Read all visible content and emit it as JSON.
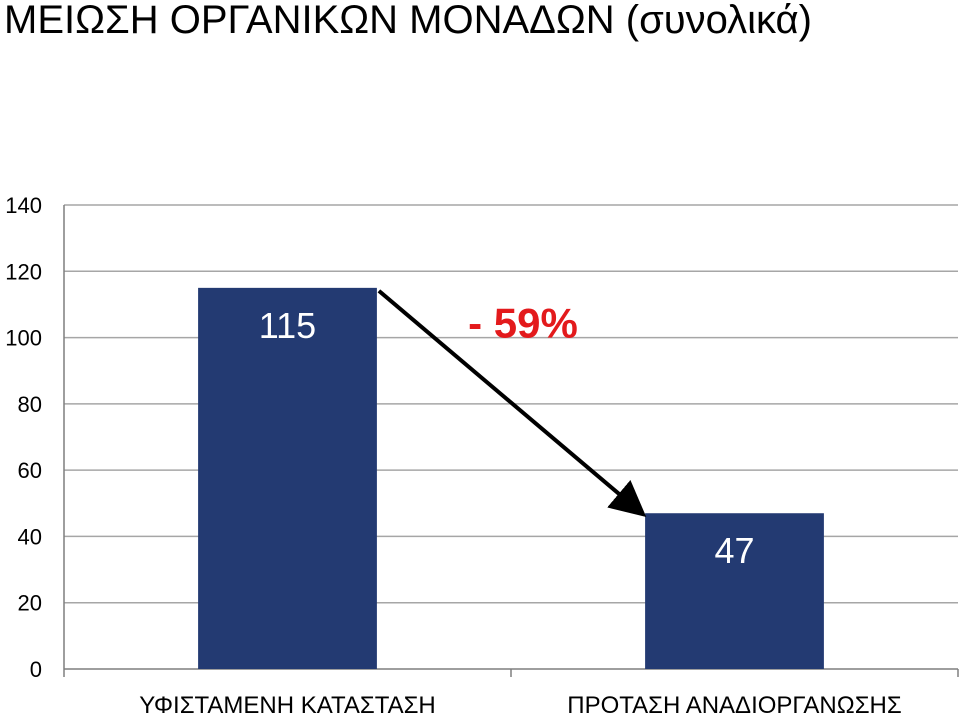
{
  "chart_data": {
    "type": "bar",
    "title": "ΜΕΙΩΣΗ ΟΡΓΑΝΙΚΩΝ ΜΟΝΑΔΩΝ (συνολικά)",
    "categories": [
      "ΥΦΙΣΤΑΜΕΝΗ ΚΑΤΑΣΤΑΣΗ",
      "ΠΡΟΤΑΣΗ ΑΝΑΔΙΟΡΓΑΝΩΣΗΣ"
    ],
    "values": [
      115,
      47
    ],
    "data_labels": [
      "115",
      "47"
    ],
    "ylim": [
      0,
      140
    ],
    "yticks": [
      0,
      20,
      40,
      60,
      80,
      100,
      120,
      140
    ],
    "grid": true,
    "legend": "none",
    "annotation": {
      "text": "- 59%",
      "arrow_from": "bar-1",
      "arrow_to": "bar-2"
    },
    "colors": {
      "bar": "#233a72",
      "data_label": "#ffffff",
      "annotation_text": "#e31a1c",
      "arrow": "#000000",
      "gridline": "#a6a6a6",
      "axis": "#7f7f7f"
    }
  }
}
